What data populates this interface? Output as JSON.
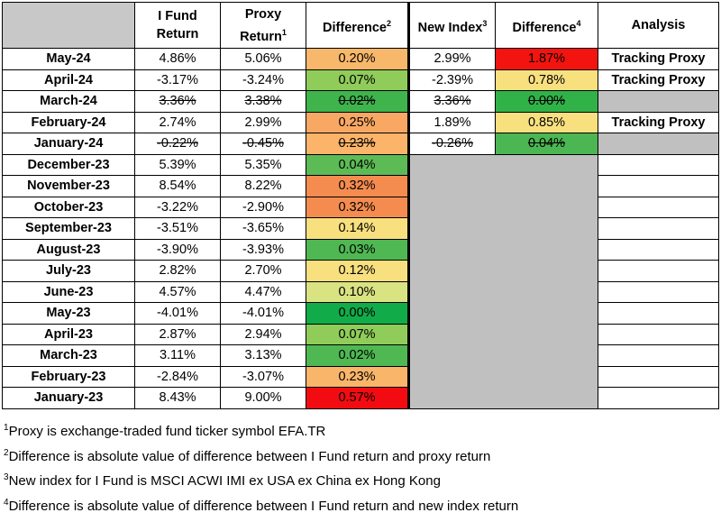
{
  "headers": {
    "month": "",
    "ifund": "I Fund Return",
    "proxy": "Proxy Return",
    "proxy_sup": "1",
    "diff": "Difference",
    "diff_sup": "2",
    "newidx": "New Index",
    "newidx_sup": "3",
    "diff2": "Difference",
    "diff2_sup": "4",
    "analysis": "Analysis"
  },
  "rows": [
    {
      "month": "May-24",
      "ifund": "4.86%",
      "proxy": "5.06%",
      "diff": "0.20%",
      "newidx": "2.99%",
      "diff2": "1.87%",
      "analysis": "Tracking Proxy"
    },
    {
      "month": "April-24",
      "ifund": "-3.17%",
      "proxy": "-3.24%",
      "diff": "0.07%",
      "newidx": "-2.39%",
      "diff2": "0.78%",
      "analysis": "Tracking Proxy"
    },
    {
      "month": "March-24",
      "ifund": "3.36%",
      "proxy": "3.38%",
      "diff": "0.02%",
      "newidx": "3.36%",
      "diff2": "0.00%",
      "analysis": ""
    },
    {
      "month": "February-24",
      "ifund": "2.74%",
      "proxy": "2.99%",
      "diff": "0.25%",
      "newidx": "1.89%",
      "diff2": "0.85%",
      "analysis": "Tracking Proxy"
    },
    {
      "month": "January-24",
      "ifund": "-0.22%",
      "proxy": "-0.45%",
      "diff": "0.23%",
      "newidx": "-0.26%",
      "diff2": "0.04%",
      "analysis": ""
    },
    {
      "month": "December-23",
      "ifund": "5.39%",
      "proxy": "5.35%",
      "diff": "0.04%"
    },
    {
      "month": "November-23",
      "ifund": "8.54%",
      "proxy": "8.22%",
      "diff": "0.32%"
    },
    {
      "month": "October-23",
      "ifund": "-3.22%",
      "proxy": "-2.90%",
      "diff": "0.32%"
    },
    {
      "month": "September-23",
      "ifund": "-3.51%",
      "proxy": "-3.65%",
      "diff": "0.14%"
    },
    {
      "month": "August-23",
      "ifund": "-3.90%",
      "proxy": "-3.93%",
      "diff": "0.03%"
    },
    {
      "month": "July-23",
      "ifund": "2.82%",
      "proxy": "2.70%",
      "diff": "0.12%"
    },
    {
      "month": "June-23",
      "ifund": "4.57%",
      "proxy": "4.47%",
      "diff": "0.10%"
    },
    {
      "month": "May-23",
      "ifund": "-4.01%",
      "proxy": "-4.01%",
      "diff": "0.00%"
    },
    {
      "month": "April-23",
      "ifund": "2.87%",
      "proxy": "2.94%",
      "diff": "0.07%"
    },
    {
      "month": "March-23",
      "ifund": "3.11%",
      "proxy": "3.13%",
      "diff": "0.02%"
    },
    {
      "month": "February-23",
      "ifund": "-2.84%",
      "proxy": "-3.07%",
      "diff": "0.23%"
    },
    {
      "month": "January-23",
      "ifund": "8.43%",
      "proxy": "9.00%",
      "diff": "0.57%"
    }
  ],
  "strike_rows": [
    2,
    4
  ],
  "colors": {
    "diff": [
      "#f8b86b",
      "#8fcc5a",
      "#3fb44d",
      "#f9a863",
      "#fcb46a",
      "#5cbb55",
      "#f48c50",
      "#f48c50",
      "#f9e07f",
      "#4fb853",
      "#f9e07f",
      "#d9e382",
      "#12ab49",
      "#8fcc5a",
      "#4fb853",
      "#f9b56a",
      "#f20c12"
    ],
    "diff2": [
      "#f3140f",
      "#f9e07f",
      "#31b249",
      "#f9e07f",
      "#4cb652"
    ],
    "gray_area": "#c0c0c0",
    "corner": "#c8c8c8"
  },
  "notes": [
    {
      "sup": "1",
      "text": "Proxy is exchange-traded fund ticker symbol EFA.TR"
    },
    {
      "sup": "2",
      "text": "Difference is absolute value of difference between I Fund return and proxy return"
    },
    {
      "sup": "3",
      "text": "New index for I Fund is MSCI ACWI IMI ex USA ex China ex Hong Kong"
    },
    {
      "sup": "4",
      "text": "Difference is absolute value of difference between I Fund return and new index return"
    }
  ]
}
